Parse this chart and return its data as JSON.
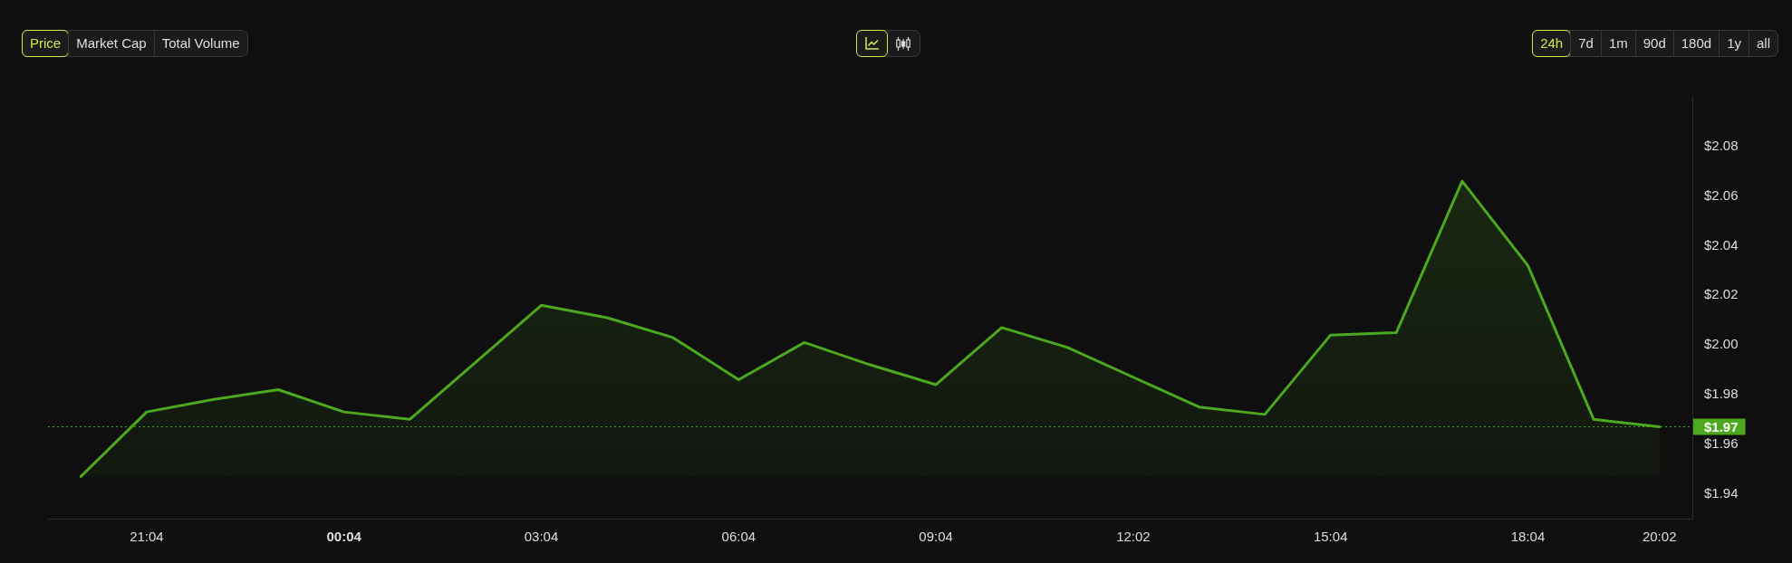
{
  "chart_data": {
    "type": "area",
    "categories": [
      null,
      "21:04",
      null,
      null,
      "00:04",
      null,
      null,
      "03:04",
      null,
      null,
      "06:04",
      null,
      null,
      "09:04",
      null,
      null,
      "12:02",
      null,
      null,
      "15:04",
      null,
      null,
      "18:04",
      null,
      "20:02"
    ],
    "series": [
      {
        "color": "#4ca81f",
        "values": [
          1.947,
          1.973,
          1.978,
          1.982,
          1.973,
          1.97,
          1.993,
          2.016,
          2.011,
          2.003,
          1.986,
          2.001,
          1.992,
          1.984,
          2.007,
          1.999,
          1.987,
          1.975,
          1.972,
          2.004,
          2.005,
          2.066,
          2.032,
          1.97,
          1.967
        ]
      }
    ],
    "ylim": [
      1.93,
      2.1
    ],
    "yticks": [
      {
        "value": 1.94,
        "label": "$1.94"
      },
      {
        "value": 1.96,
        "label": "$1.96"
      },
      {
        "value": 1.98,
        "label": "$1.98"
      },
      {
        "value": 2.0,
        "label": "$2.00"
      },
      {
        "value": 2.02,
        "label": "$2.02"
      },
      {
        "value": 2.04,
        "label": "$2.04"
      },
      {
        "value": 2.06,
        "label": "$2.06"
      },
      {
        "value": 2.08,
        "label": "$2.08"
      }
    ],
    "ref_lines": [
      {
        "axis": "y",
        "value": 1.967,
        "label": "$1.97",
        "color": "#4ca81f",
        "line_style": "dotted"
      }
    ],
    "annotations": [
      "Price",
      "Market Cap",
      "Total Volume",
      "24h",
      "7d",
      "1m",
      "90d",
      "180d",
      "1y",
      "all"
    ]
  }
}
